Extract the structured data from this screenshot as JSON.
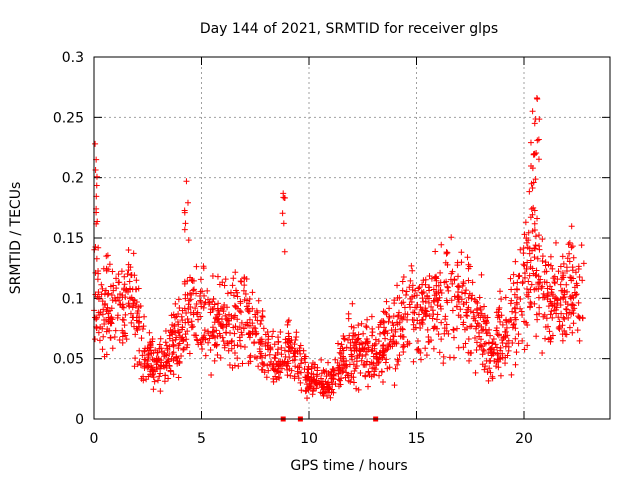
{
  "chart_data": {
    "type": "scatter",
    "title": "Day 144 of 2021, SRMTID for receiver glps",
    "xlabel": "GPS time / hours",
    "ylabel": "SRMTID / TECUs",
    "xlim": [
      0,
      24
    ],
    "ylim": [
      0,
      0.3
    ],
    "x_ticks": [
      0,
      5,
      10,
      15,
      20
    ],
    "x_tick_labels": [
      "0",
      "5",
      "10",
      "15",
      "20"
    ],
    "y_ticks": [
      0,
      0.05,
      0.1,
      0.15,
      0.2,
      0.25,
      0.3
    ],
    "y_tick_labels": [
      "0",
      "0.05",
      "0.1",
      "0.15",
      "0.2",
      "0.25",
      "0.3"
    ],
    "grid": true,
    "marker": "plus",
    "series": [
      {
        "name": "SRMTID",
        "color": "#ff0000",
        "x_range": [
          0,
          22.8
        ],
        "trend_hours": [
          0,
          0.3,
          1.0,
          1.7,
          2.5,
          3.2,
          4.0,
          4.3,
          5.0,
          6.0,
          7.0,
          7.8,
          8.5,
          9.0,
          10.0,
          11.0,
          12.0,
          13.0,
          14.0,
          15.0,
          16.0,
          17.0,
          18.0,
          18.5,
          19.0,
          20.0,
          20.5,
          21.0,
          22.0,
          22.8
        ],
        "trend_values": [
          0.11,
          0.1,
          0.09,
          0.1,
          0.05,
          0.045,
          0.07,
          0.09,
          0.085,
          0.075,
          0.09,
          0.06,
          0.045,
          0.06,
          0.032,
          0.03,
          0.06,
          0.055,
          0.07,
          0.09,
          0.095,
          0.1,
          0.08,
          0.05,
          0.075,
          0.11,
          0.14,
          0.1,
          0.1,
          0.11
        ],
        "spikes": [
          {
            "x": 0.05,
            "y": 0.228
          },
          {
            "x": 0.1,
            "y": 0.215
          },
          {
            "x": 4.3,
            "y": 0.197
          },
          {
            "x": 8.8,
            "y": 0.187
          },
          {
            "x": 20.4,
            "y": 0.255
          },
          {
            "x": 20.6,
            "y": 0.266
          },
          {
            "x": 20.5,
            "y": 0.245
          }
        ]
      }
    ],
    "axis_markers_x": [
      8.8,
      9.6,
      13.1
    ]
  }
}
